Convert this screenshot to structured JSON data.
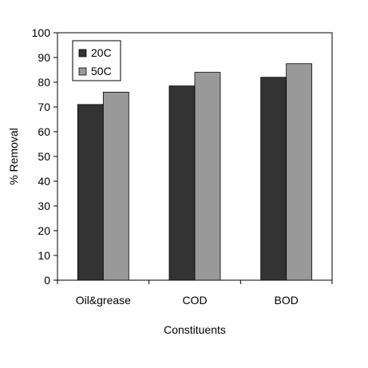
{
  "chart_data": {
    "type": "bar",
    "title": "",
    "xlabel": "Constituents",
    "ylabel": "% Removal",
    "categories": [
      "Oil&grease",
      "COD",
      "BOD"
    ],
    "series": [
      {
        "name": "20C",
        "values": [
          71,
          78.5,
          82
        ],
        "color": "#333333"
      },
      {
        "name": "50C",
        "values": [
          76,
          84,
          87.5
        ],
        "color": "#999999"
      }
    ],
    "ylim": [
      0,
      100
    ],
    "yticks": [
      0,
      10,
      20,
      30,
      40,
      50,
      60,
      70,
      80,
      90,
      100
    ],
    "grid": false,
    "legend_position": "top-left"
  }
}
